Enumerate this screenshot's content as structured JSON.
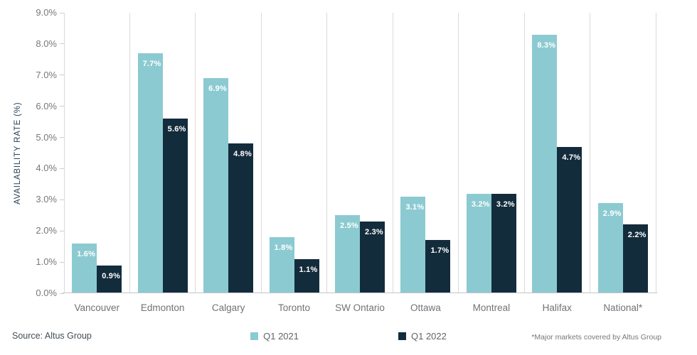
{
  "chart_data": {
    "type": "bar",
    "title": "",
    "xlabel": "",
    "ylabel": "AVAILABILITY RATE (%)",
    "ylim": [
      0,
      9
    ],
    "ytick_step": 1,
    "ytick_labels": [
      "0.0%",
      "1.0%",
      "2.0%",
      "3.0%",
      "4.0%",
      "5.0%",
      "6.0%",
      "7.0%",
      "8.0%",
      "9.0%"
    ],
    "grid": "vertical category separators only",
    "legend_position": "bottom-center",
    "value_labels": "inside bar top, white bold, percent with one decimal",
    "categories": [
      "Vancouver",
      "Edmonton",
      "Calgary",
      "Toronto",
      "SW Ontario",
      "Ottawa",
      "Montreal",
      "Halifax",
      "National*"
    ],
    "series": [
      {
        "name": "Q1 2021",
        "color": "#8ccad1",
        "values": [
          1.6,
          7.7,
          6.9,
          1.8,
          2.5,
          3.1,
          3.2,
          8.3,
          2.9
        ]
      },
      {
        "name": "Q1 2022",
        "color": "#132c3c",
        "values": [
          0.9,
          5.6,
          4.8,
          1.1,
          2.3,
          1.7,
          3.2,
          4.7,
          2.2
        ]
      }
    ]
  },
  "footer": {
    "source": "Source: Altus Group",
    "note": "*Major markets covered by Altus Group"
  },
  "colors": {
    "series_q1_2021": "#8ccad1",
    "series_q1_2022": "#132c3c",
    "gridline": "#dbdbdb",
    "baseline": "#c2c4c6",
    "tick_text": "#75787b",
    "category_text": "#6f7276",
    "axis_title_text": "#2a4257",
    "value_label_text": "#ffffff",
    "background": "#ffffff"
  }
}
